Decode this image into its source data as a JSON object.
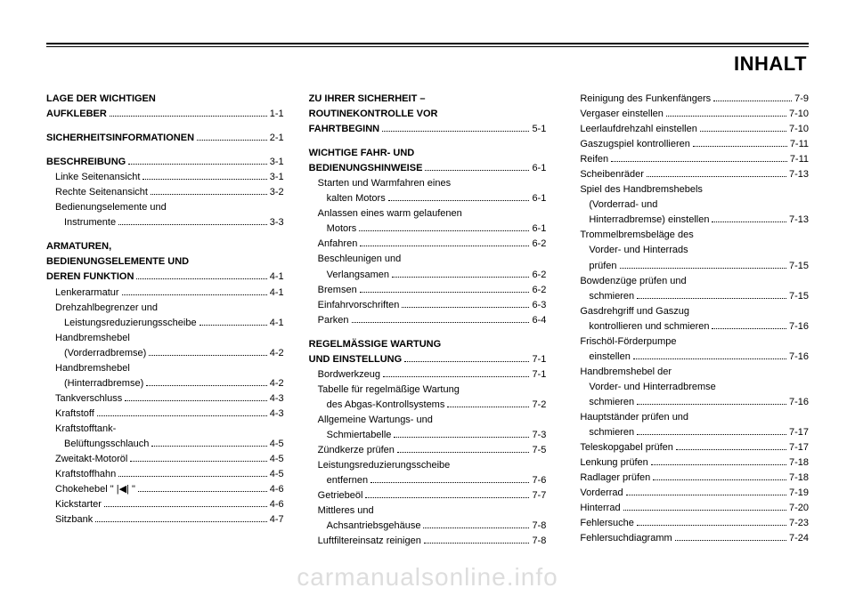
{
  "title": "INHALT",
  "watermark": "carmanualsonline.info",
  "col1": [
    {
      "type": "entry",
      "indent": 0,
      "bold": true,
      "label": "LAGE DER WICHTIGEN"
    },
    {
      "type": "entry",
      "indent": 0,
      "bold": true,
      "label": "AUFKLEBER",
      "page": "1-1"
    },
    {
      "type": "spacer"
    },
    {
      "type": "entry",
      "indent": 0,
      "bold": true,
      "label": "SICHERHEITSINFORMATIONEN",
      "page": "2-1"
    },
    {
      "type": "spacer"
    },
    {
      "type": "entry",
      "indent": 0,
      "bold": true,
      "label": "BESCHREIBUNG",
      "page": "3-1"
    },
    {
      "type": "entry",
      "indent": 1,
      "label": "Linke Seitenansicht",
      "page": "3-1"
    },
    {
      "type": "entry",
      "indent": 1,
      "label": "Rechte Seitenansicht",
      "page": "3-2"
    },
    {
      "type": "entry",
      "indent": 1,
      "label": "Bedienungselemente und"
    },
    {
      "type": "entry",
      "indent": 2,
      "label": "Instrumente",
      "page": "3-3"
    },
    {
      "type": "spacer"
    },
    {
      "type": "entry",
      "indent": 0,
      "bold": true,
      "label": "ARMATUREN,"
    },
    {
      "type": "entry",
      "indent": 0,
      "bold": true,
      "label": "BEDIENUNGSELEMENTE UND"
    },
    {
      "type": "entry",
      "indent": 0,
      "bold": true,
      "label": "DEREN FUNKTION",
      "page": "4-1"
    },
    {
      "type": "entry",
      "indent": 1,
      "label": "Lenkerarmatur",
      "page": "4-1"
    },
    {
      "type": "entry",
      "indent": 1,
      "label": "Drehzahlbegrenzer und"
    },
    {
      "type": "entry",
      "indent": 2,
      "label": "Leistungsreduzierungsscheibe",
      "page": "4-1"
    },
    {
      "type": "entry",
      "indent": 1,
      "label": "Handbremshebel"
    },
    {
      "type": "entry",
      "indent": 2,
      "label": "(Vorderradbremse)",
      "page": "4-2"
    },
    {
      "type": "entry",
      "indent": 1,
      "label": "Handbremshebel"
    },
    {
      "type": "entry",
      "indent": 2,
      "label": "(Hinterradbremse)",
      "page": "4-2"
    },
    {
      "type": "entry",
      "indent": 1,
      "label": "Tankverschluss",
      "page": "4-3"
    },
    {
      "type": "entry",
      "indent": 1,
      "label": "Kraftstoff",
      "page": "4-3"
    },
    {
      "type": "entry",
      "indent": 1,
      "label": "Kraftstofftank-"
    },
    {
      "type": "entry",
      "indent": 2,
      "label": "Belüftungsschlauch",
      "page": "4-5"
    },
    {
      "type": "entry",
      "indent": 1,
      "label": "Zweitakt-Motoröl",
      "page": "4-5"
    },
    {
      "type": "entry",
      "indent": 1,
      "label": "Kraftstoffhahn",
      "page": "4-5"
    },
    {
      "type": "entry",
      "indent": 1,
      "label": "Chokehebel \" |◀| \"",
      "page": "4-6"
    },
    {
      "type": "entry",
      "indent": 1,
      "label": "Kickstarter",
      "page": "4-6"
    },
    {
      "type": "entry",
      "indent": 1,
      "label": "Sitzbank",
      "page": "4-7"
    }
  ],
  "col2": [
    {
      "type": "entry",
      "indent": 0,
      "bold": true,
      "label": "ZU IHRER SICHERHEIT –"
    },
    {
      "type": "entry",
      "indent": 0,
      "bold": true,
      "label": "ROUTINEKONTROLLE VOR"
    },
    {
      "type": "entry",
      "indent": 0,
      "bold": true,
      "label": "FAHRTBEGINN",
      "page": "5-1"
    },
    {
      "type": "spacer"
    },
    {
      "type": "entry",
      "indent": 0,
      "bold": true,
      "label": "WICHTIGE FAHR- UND"
    },
    {
      "type": "entry",
      "indent": 0,
      "bold": true,
      "label": "BEDIENUNGSHINWEISE",
      "page": "6-1"
    },
    {
      "type": "entry",
      "indent": 1,
      "label": "Starten und Warmfahren eines"
    },
    {
      "type": "entry",
      "indent": 2,
      "label": "kalten Motors",
      "page": "6-1"
    },
    {
      "type": "entry",
      "indent": 1,
      "label": "Anlassen eines warm gelaufenen"
    },
    {
      "type": "entry",
      "indent": 2,
      "label": "Motors",
      "page": "6-1"
    },
    {
      "type": "entry",
      "indent": 1,
      "label": "Anfahren",
      "page": "6-2"
    },
    {
      "type": "entry",
      "indent": 1,
      "label": "Beschleunigen und"
    },
    {
      "type": "entry",
      "indent": 2,
      "label": "Verlangsamen",
      "page": "6-2"
    },
    {
      "type": "entry",
      "indent": 1,
      "label": "Bremsen",
      "page": "6-2"
    },
    {
      "type": "entry",
      "indent": 1,
      "label": "Einfahrvorschriften",
      "page": "6-3"
    },
    {
      "type": "entry",
      "indent": 1,
      "label": "Parken",
      "page": "6-4"
    },
    {
      "type": "spacer"
    },
    {
      "type": "entry",
      "indent": 0,
      "bold": true,
      "label": "REGELMÄSSIGE WARTUNG"
    },
    {
      "type": "entry",
      "indent": 0,
      "bold": true,
      "label": "UND EINSTELLUNG",
      "page": "7-1"
    },
    {
      "type": "entry",
      "indent": 1,
      "label": "Bordwerkzeug",
      "page": "7-1"
    },
    {
      "type": "entry",
      "indent": 1,
      "label": "Tabelle für regelmäßige Wartung"
    },
    {
      "type": "entry",
      "indent": 2,
      "label": "des Abgas-Kontrollsystems",
      "page": "7-2"
    },
    {
      "type": "entry",
      "indent": 1,
      "label": "Allgemeine Wartungs- und"
    },
    {
      "type": "entry",
      "indent": 2,
      "label": "Schmiertabelle",
      "page": "7-3"
    },
    {
      "type": "entry",
      "indent": 1,
      "label": "Zündkerze prüfen",
      "page": "7-5"
    },
    {
      "type": "entry",
      "indent": 1,
      "label": "Leistungsreduzierungsscheibe"
    },
    {
      "type": "entry",
      "indent": 2,
      "label": "entfernen",
      "page": "7-6"
    },
    {
      "type": "entry",
      "indent": 1,
      "label": "Getriebeöl",
      "page": "7-7"
    },
    {
      "type": "entry",
      "indent": 1,
      "label": "Mittleres und"
    },
    {
      "type": "entry",
      "indent": 2,
      "label": "Achsantriebsgehäuse",
      "page": "7-8"
    },
    {
      "type": "entry",
      "indent": 1,
      "label": "Luftfiltereinsatz reinigen",
      "page": "7-8"
    }
  ],
  "col3": [
    {
      "type": "entry",
      "indent": 1,
      "label": "Reinigung des Funkenfängers",
      "page": "7-9"
    },
    {
      "type": "entry",
      "indent": 1,
      "label": "Vergaser einstellen",
      "page": "7-10"
    },
    {
      "type": "entry",
      "indent": 1,
      "label": "Leerlaufdrehzahl einstellen",
      "page": "7-10"
    },
    {
      "type": "entry",
      "indent": 1,
      "label": "Gaszugspiel kontrollieren",
      "page": "7-11"
    },
    {
      "type": "entry",
      "indent": 1,
      "label": "Reifen",
      "page": "7-11"
    },
    {
      "type": "entry",
      "indent": 1,
      "label": "Scheibenräder",
      "page": "7-13"
    },
    {
      "type": "entry",
      "indent": 1,
      "label": "Spiel des Handbremshebels"
    },
    {
      "type": "entry",
      "indent": 2,
      "label": "(Vorderrad- und"
    },
    {
      "type": "entry",
      "indent": 2,
      "label": "Hinterradbremse) einstellen",
      "page": "7-13"
    },
    {
      "type": "entry",
      "indent": 1,
      "label": "Trommelbremsbeläge des"
    },
    {
      "type": "entry",
      "indent": 2,
      "label": "Vorder- und Hinterrads"
    },
    {
      "type": "entry",
      "indent": 2,
      "label": "prüfen",
      "page": "7-15"
    },
    {
      "type": "entry",
      "indent": 1,
      "label": "Bowdenzüge prüfen und"
    },
    {
      "type": "entry",
      "indent": 2,
      "label": "schmieren",
      "page": "7-15"
    },
    {
      "type": "entry",
      "indent": 1,
      "label": "Gasdrehgriff und Gaszug"
    },
    {
      "type": "entry",
      "indent": 2,
      "label": "kontrollieren und schmieren",
      "page": "7-16"
    },
    {
      "type": "entry",
      "indent": 1,
      "label": "Frischöl-Förderpumpe"
    },
    {
      "type": "entry",
      "indent": 2,
      "label": "einstellen",
      "page": "7-16"
    },
    {
      "type": "entry",
      "indent": 1,
      "label": "Handbremshebel der"
    },
    {
      "type": "entry",
      "indent": 2,
      "label": "Vorder- und Hinterradbremse"
    },
    {
      "type": "entry",
      "indent": 2,
      "label": "schmieren",
      "page": "7-16"
    },
    {
      "type": "entry",
      "indent": 1,
      "label": "Hauptständer prüfen und"
    },
    {
      "type": "entry",
      "indent": 2,
      "label": "schmieren",
      "page": "7-17"
    },
    {
      "type": "entry",
      "indent": 1,
      "label": "Teleskopgabel prüfen",
      "page": "7-17"
    },
    {
      "type": "entry",
      "indent": 1,
      "label": "Lenkung prüfen",
      "page": "7-18"
    },
    {
      "type": "entry",
      "indent": 1,
      "label": "Radlager prüfen",
      "page": "7-18"
    },
    {
      "type": "entry",
      "indent": 1,
      "label": "Vorderrad",
      "page": "7-19"
    },
    {
      "type": "entry",
      "indent": 1,
      "label": "Hinterrad",
      "page": "7-20"
    },
    {
      "type": "entry",
      "indent": 1,
      "label": "Fehlersuche",
      "page": "7-23"
    },
    {
      "type": "entry",
      "indent": 1,
      "label": "Fehlersuchdiagramm",
      "page": "7-24"
    }
  ]
}
